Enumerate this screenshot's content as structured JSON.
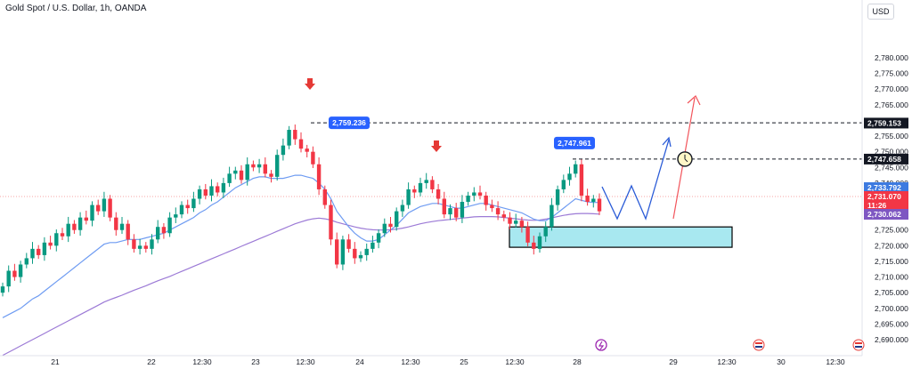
{
  "header": {
    "title": "Gold Spot / U.S. Dollar, 1h, OANDA",
    "currency": "USD"
  },
  "chart_data": {
    "type": "candlestick",
    "y_ticks": [
      "2,690.000",
      "2,695.000",
      "2,700.000",
      "2,705.000",
      "2,710.000",
      "2,715.000",
      "2,720.000",
      "2,725.000",
      "2,730.000",
      "2,735.000",
      "2,740.000",
      "2,745.000",
      "2,750.000",
      "2,755.000",
      "2,760.000",
      "2,765.000",
      "2,770.000",
      "2,775.000",
      "2,780.000"
    ],
    "y_values": [
      2690,
      2695,
      2700,
      2705,
      2710,
      2715,
      2720,
      2725,
      2730,
      2735,
      2740,
      2745,
      2750,
      2755,
      2760,
      2765,
      2770,
      2775,
      2780
    ],
    "x_ticks": [
      "21",
      "22",
      "12:30",
      "23",
      "12:30",
      "24",
      "12:30",
      "25",
      "12:30",
      "28",
      "29",
      "12:30",
      "30",
      "12:30"
    ],
    "price_tags": [
      {
        "label": "2,759.153",
        "value": 2759.153,
        "style": "black"
      },
      {
        "label": "2,747.658",
        "value": 2747.658,
        "style": "black"
      },
      {
        "label": "2,733.792",
        "value": 2733.792,
        "style": "blue"
      },
      {
        "label": "2,731.070",
        "value": 2731.07,
        "style": "red"
      },
      {
        "label": "11:26",
        "value": 2728.9,
        "style": "red"
      },
      {
        "label": "2,730.062",
        "value": 2730.062,
        "style": "purple"
      }
    ],
    "annotations": [
      {
        "label": "2,759.236",
        "value": 2759.236
      },
      {
        "label": "2,747.961",
        "value": 2747.961
      }
    ],
    "zone": {
      "low": 2719.5,
      "high": 2726.0
    },
    "closes": [
      2707,
      2712,
      2710,
      2714,
      2716,
      2719,
      2717,
      2721,
      2720,
      2724,
      2723,
      2727,
      2725,
      2729,
      2728,
      2733,
      2731,
      2735,
      2729,
      2725,
      2727,
      2722,
      2719,
      2720,
      2719,
      2722,
      2726,
      2724,
      2729,
      2730,
      2733,
      2732,
      2735,
      2738,
      2736,
      2739,
      2737,
      2740,
      2743,
      2744,
      2741,
      2746,
      2745,
      2746,
      2743,
      2742,
      2749,
      2752,
      2757,
      2754,
      2751,
      2750,
      2746,
      2738,
      2733,
      2722,
      2714,
      2722,
      2719,
      2716,
      2717,
      2719,
      2721,
      2724,
      2727,
      2726,
      2731,
      2733,
      2738,
      2737,
      2740,
      2741,
      2738,
      2735,
      2730,
      2732,
      2729,
      2734,
      2736,
      2737,
      2736,
      2733,
      2732,
      2730,
      2729,
      2727,
      2728,
      2726,
      2721,
      2719,
      2723,
      2726,
      2733,
      2738,
      2741,
      2743,
      2746,
      2736,
      2734,
      2735,
      2731
    ],
    "ema_fast": [
      2697,
      2698,
      2699,
      2700,
      2701.5,
      2703,
      2704,
      2705.5,
      2707,
      2708.5,
      2710,
      2711.5,
      2713,
      2714.5,
      2716,
      2717.5,
      2719,
      2720.5,
      2721,
      2721,
      2721.5,
      2722,
      2722,
      2722,
      2722.5,
      2723,
      2723.5,
      2724,
      2725,
      2726,
      2727,
      2728,
      2729,
      2730.5,
      2731.5,
      2733,
      2734,
      2735.5,
      2737,
      2738.5,
      2739.5,
      2740.5,
      2741.5,
      2742,
      2742,
      2741.5,
      2741.5,
      2741.5,
      2742,
      2742.5,
      2742.5,
      2742,
      2741.5,
      2740,
      2738,
      2735,
      2731,
      2728.5,
      2726,
      2724,
      2722.5,
      2721.5,
      2721.5,
      2722,
      2723.5,
      2725,
      2726.5,
      2728.5,
      2730.5,
      2731.5,
      2732.5,
      2733,
      2733.5,
      2733.5,
      2733,
      2732.5,
      2732,
      2732,
      2732.5,
      2733,
      2733.5,
      2733.5,
      2733,
      2732.5,
      2732,
      2731.5,
      2731,
      2730.5,
      2729.5,
      2728.5,
      2728,
      2728,
      2729,
      2730.5,
      2732,
      2733.5,
      2735,
      2734.5,
      2734,
      2733.8,
      2733.8
    ],
    "ema_slow": [
      2685,
      2686,
      2687,
      2688,
      2689,
      2690,
      2691,
      2692,
      2693,
      2694,
      2695,
      2696,
      2697,
      2698,
      2699,
      2700,
      2701,
      2702,
      2702.8,
      2703.5,
      2704.2,
      2705,
      2705.8,
      2706.5,
      2707.2,
      2708,
      2708.8,
      2709.5,
      2710.2,
      2711,
      2711.8,
      2712.6,
      2713.4,
      2714.2,
      2715,
      2715.8,
      2716.6,
      2717.4,
      2718.2,
      2719,
      2719.8,
      2720.6,
      2721.4,
      2722.2,
      2723,
      2723.8,
      2724.6,
      2725.4,
      2726.2,
      2727,
      2727.6,
      2728.2,
      2728.6,
      2728.8,
      2728.6,
      2728.2,
      2727.5,
      2727,
      2726.5,
      2726,
      2725.6,
      2725.3,
      2725.1,
      2725,
      2725,
      2725.1,
      2725.3,
      2725.6,
      2726,
      2726.5,
      2727,
      2727.4,
      2727.7,
      2728,
      2728.2,
      2728.4,
      2728.6,
      2728.8,
      2729,
      2729.2,
      2729.3,
      2729.3,
      2729.3,
      2729.2,
      2729,
      2728.8,
      2728.6,
      2728.4,
      2728.2,
      2728.1,
      2728.2,
      2728.5,
      2728.9,
      2729.3,
      2729.7,
      2730,
      2730.2,
      2730.3,
      2730.3,
      2730.2,
      2730.1
    ]
  }
}
